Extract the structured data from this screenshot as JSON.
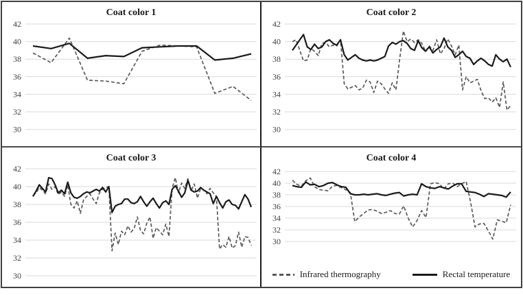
{
  "figure": {
    "description": "Four-panel line figure comparing infrared thermography and rectal temperature by coat color",
    "colors": {
      "grid": "#d9d9d9",
      "irt_line": "#595959",
      "rectal_line": "#1a1a1a",
      "tick_text": "#404040",
      "border": "#404040"
    }
  },
  "legend": {
    "items": [
      {
        "label": "Infrared thermography",
        "style": "dashed"
      },
      {
        "label": "Rectal temperature",
        "style": "solid"
      }
    ]
  },
  "axis": {
    "ylim": [
      30,
      42
    ],
    "yticks": [
      42,
      40,
      38,
      36,
      34,
      32,
      30
    ],
    "grid": true,
    "x_tick_labels": "none"
  },
  "chart_data": [
    {
      "type": "line",
      "title": "Coat color 1",
      "ylim": [
        30,
        42
      ],
      "yticks": [
        42,
        40,
        38,
        36,
        34,
        32,
        30
      ],
      "series": [
        {
          "name": "Infrared thermography",
          "style": "dashed",
          "values": [
            38.7,
            37.6,
            40.4,
            35.6,
            35.5,
            35.2,
            38.9,
            39.6,
            39.5,
            39.4,
            34.1,
            34.9,
            33.3
          ]
        },
        {
          "name": "Rectal temperature",
          "style": "solid",
          "values": [
            39.5,
            39.2,
            39.8,
            38.1,
            38.4,
            38.3,
            39.3,
            39.4,
            39.5,
            39.5,
            37.9,
            38.1,
            38.6
          ]
        }
      ]
    },
    {
      "type": "line",
      "title": "Coat color 2",
      "ylim": [
        30,
        42
      ],
      "yticks": [
        42,
        40,
        38,
        36,
        34,
        32,
        30
      ],
      "series": [
        {
          "name": "Infrared thermography",
          "style": "dashed",
          "values": [
            40.0,
            40.2,
            39.0,
            37.8,
            37.9,
            39.2,
            38.9,
            38.4,
            39.8,
            39.9,
            39.4,
            39.6,
            39.5,
            40.2,
            35.2,
            34.6,
            34.8,
            35.0,
            34.5,
            34.7,
            35.6,
            35.4,
            34.2,
            35.5,
            35.2,
            34.6,
            34.1,
            35.3,
            34.5,
            38.0,
            41.2,
            40.0,
            40.3,
            39.9,
            40.2,
            39.8,
            38.9,
            39.5,
            39.0,
            40.2,
            38.6,
            39.2,
            40.3,
            39.5,
            38.5,
            39.6,
            34.5,
            36.0,
            35.3,
            35.5,
            35.7,
            34.4,
            33.5,
            33.6,
            33.1,
            33.6,
            32.5,
            35.4,
            32.2,
            32.7
          ]
        },
        {
          "name": "Rectal temperature",
          "style": "solid",
          "values": [
            39.0,
            39.6,
            40.2,
            40.8,
            39.4,
            39.1,
            39.7,
            39.2,
            39.4,
            40.0,
            40.2,
            39.8,
            39.6,
            40.2,
            38.5,
            37.9,
            38.2,
            38.5,
            38.1,
            37.9,
            37.8,
            37.9,
            37.8,
            37.9,
            38.1,
            38.3,
            39.5,
            39.9,
            39.7,
            40.0,
            40.1,
            39.8,
            39.2,
            39.0,
            40.1,
            39.3,
            38.9,
            39.4,
            38.7,
            39.1,
            39.4,
            40.4,
            39.4,
            39.0,
            38.2,
            38.5,
            38.9,
            38.3,
            38.1,
            37.4,
            37.8,
            38.1,
            37.8,
            37.4,
            37.2,
            38.5,
            38.0,
            37.7,
            38.0,
            37.1
          ]
        }
      ]
    },
    {
      "type": "line",
      "title": "Coat color 3",
      "ylim": [
        30,
        42
      ],
      "yticks": [
        42,
        40,
        38,
        36,
        34,
        32,
        30
      ],
      "series": [
        {
          "name": "Infrared thermography",
          "style": "dashed",
          "values": [
            39.0,
            39.3,
            39.9,
            39.6,
            39.2,
            40.3,
            39.7,
            40.0,
            39.1,
            39.4,
            38.9,
            40.2,
            38.0,
            37.6,
            38.4,
            37.0,
            38.5,
            38.9,
            39.2,
            38.6,
            38.1,
            39.3,
            39.7,
            39.9,
            40.0,
            32.8,
            34.8,
            33.5,
            35.0,
            34.6,
            35.6,
            34.9,
            35.3,
            36.6,
            35.1,
            34.7,
            35.9,
            36.6,
            34.2,
            35.4,
            35.0,
            34.6,
            35.8,
            34.4,
            39.8,
            41.0,
            39.3,
            40.4,
            39.8,
            40.9,
            39.5,
            40.3,
            38.7,
            39.8,
            39.6,
            39.2,
            39.8,
            39.3,
            38.9,
            33.0,
            33.5,
            33.2,
            34.4,
            33.1,
            33.4,
            34.9,
            33.2,
            34.4,
            34.3,
            33.4
          ]
        },
        {
          "name": "Rectal temperature",
          "style": "solid",
          "values": [
            38.9,
            39.5,
            40.2,
            39.8,
            39.4,
            41.0,
            40.9,
            40.2,
            39.3,
            39.6,
            39.2,
            40.5,
            39.3,
            38.8,
            38.7,
            38.9,
            39.2,
            39.4,
            39.3,
            39.5,
            39.7,
            39.5,
            39.9,
            39.4,
            40.0,
            37.1,
            37.8,
            38.0,
            38.1,
            38.6,
            38.6,
            38.2,
            38.1,
            38.3,
            38.9,
            38.3,
            37.8,
            38.3,
            38.7,
            38.1,
            37.6,
            38.2,
            38.4,
            38.0,
            39.7,
            40.1,
            39.5,
            38.8,
            39.3,
            40.7,
            39.6,
            39.4,
            39.5,
            39.9,
            39.6,
            39.4,
            39.2,
            38.1,
            38.9,
            38.2,
            37.6,
            38.3,
            38.5,
            38.0,
            37.9,
            37.5,
            38.3,
            39.1,
            38.6,
            37.7
          ]
        }
      ]
    },
    {
      "type": "line",
      "title": "Coat color 4",
      "ylim": [
        30,
        42
      ],
      "yticks": [
        42,
        40,
        38,
        36,
        34,
        32,
        30
      ],
      "legend_position": "bottom",
      "series": [
        {
          "name": "Infrared thermography",
          "style": "dashed",
          "values": [
            40.5,
            39.8,
            39.5,
            40.4,
            40.9,
            39.4,
            38.9,
            38.8,
            38.7,
            39.5,
            39.6,
            39.2,
            38.9,
            38.4,
            33.4,
            34.2,
            34.8,
            35.4,
            35.5,
            35.2,
            34.8,
            35.0,
            35.3,
            34.8,
            34.7,
            36.1,
            34.0,
            32.5,
            33.6,
            35.3,
            34.1,
            39.9,
            40.1,
            39.9,
            39.0,
            39.9,
            40.0,
            39.4,
            39.9,
            40.3,
            36.8,
            32.5,
            33.0,
            33.1,
            31.8,
            30.4,
            33.7,
            33.5,
            33.2,
            36.3
          ]
        },
        {
          "name": "Rectal temperature",
          "style": "solid",
          "values": [
            39.6,
            39.4,
            39.3,
            40.2,
            39.7,
            39.8,
            39.4,
            39.6,
            40.0,
            40.1,
            39.7,
            39.4,
            39.3,
            38.2,
            38.0,
            38.0,
            38.1,
            38.0,
            38.1,
            38.2,
            38.0,
            37.9,
            38.1,
            38.3,
            38.4,
            37.8,
            38.0,
            38.1,
            38.0,
            39.9,
            39.4,
            39.2,
            39.1,
            39.4,
            39.2,
            39.0,
            39.5,
            39.9,
            39.9,
            38.6,
            38.5,
            38.4,
            38.1,
            37.7,
            38.2,
            38.1,
            38.0,
            37.9,
            37.6,
            38.5
          ]
        }
      ]
    }
  ]
}
